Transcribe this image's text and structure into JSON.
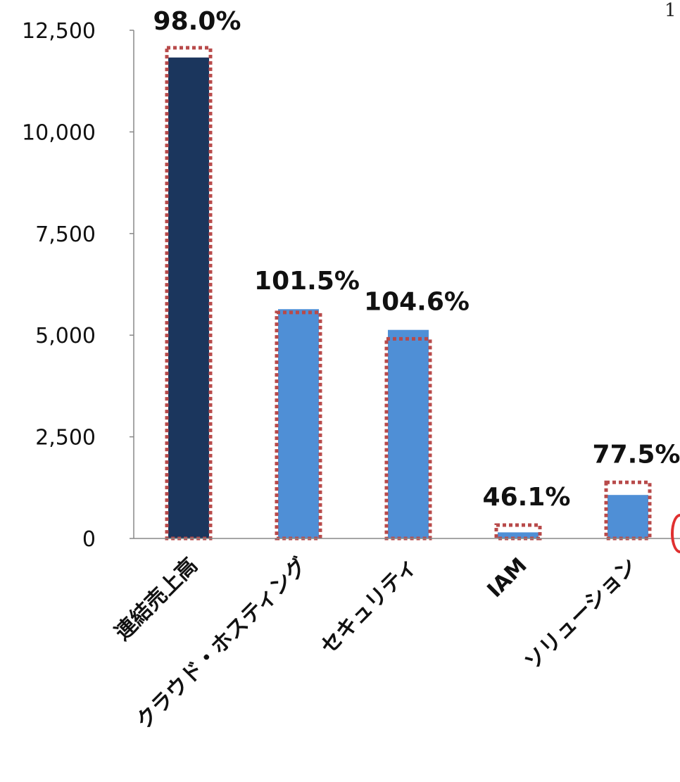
{
  "corner_text": "1",
  "chart_data": {
    "type": "bar",
    "title": "",
    "xlabel": "",
    "ylabel": "",
    "ylim": [
      0,
      12500
    ],
    "yticks": [
      0,
      2500,
      5000,
      7500,
      10000,
      12500
    ],
    "ytick_labels": [
      "0",
      "2,500",
      "5,000",
      "7,500",
      "10,000",
      "12,500"
    ],
    "grid": false,
    "categories": [
      "連結売上高",
      "クラウド・ホスティング",
      "セキュリティ",
      "IAM",
      "ソリューション"
    ],
    "series": [
      {
        "values": [
          11830,
          5640,
          5130,
          150,
          1070
        ]
      },
      {
        "values": [
          12070,
          5560,
          4910,
          330,
          1380
        ]
      }
    ],
    "data_labels": [
      "98.0%",
      "101.5%",
      "104.6%",
      "46.1%",
      "77.5%"
    ],
    "colors": {
      "first_bar": "#1b365d",
      "bars": "#4f8fd6",
      "dotted_outline": "#b84a4a",
      "axis": "#888888"
    }
  }
}
